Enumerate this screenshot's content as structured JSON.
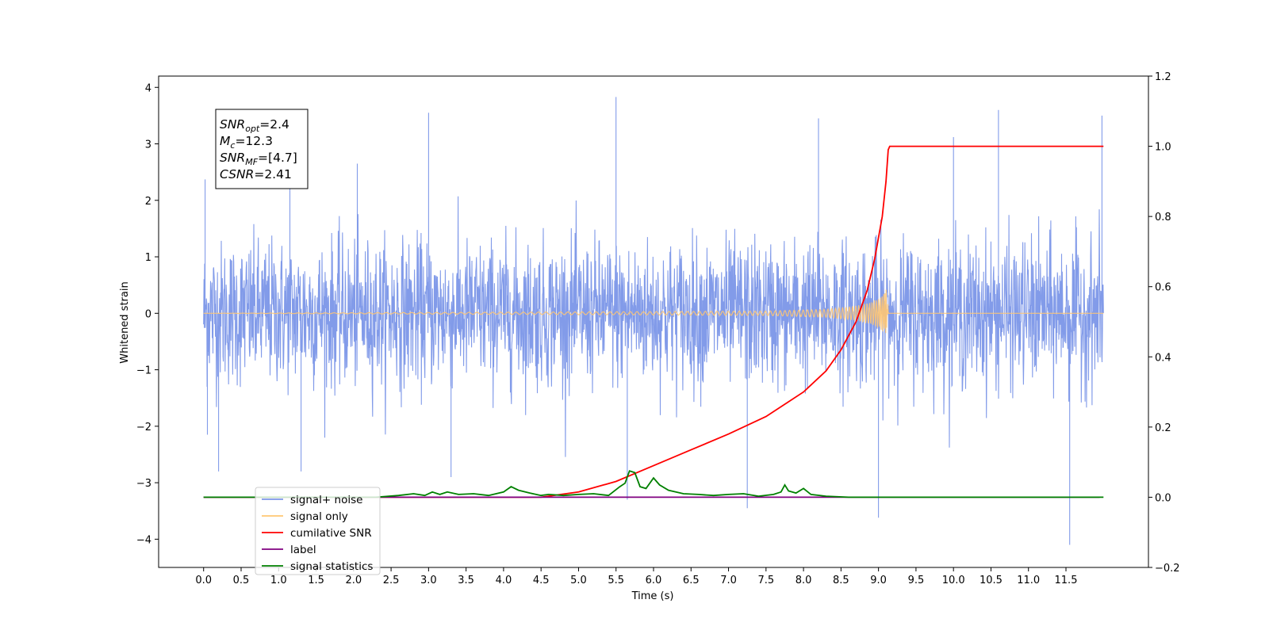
{
  "chart_data": {
    "type": "line",
    "xlabel": "Time (s)",
    "ylabel": "Whitened strain",
    "xlim": [
      -0.6,
      12.6
    ],
    "ylim_left": [
      -4.5,
      4.2
    ],
    "ylim_right": [
      -0.2,
      1.2
    ],
    "x_ticks": [
      0.0,
      0.5,
      1.0,
      1.5,
      2.0,
      2.5,
      3.0,
      3.5,
      4.0,
      4.5,
      5.0,
      5.5,
      6.0,
      6.5,
      7.0,
      7.5,
      8.0,
      8.5,
      9.0,
      9.5,
      10.0,
      10.5,
      11.0,
      11.5
    ],
    "x_tick_labels": [
      "0.0",
      "0.5",
      "1.0",
      "1.5",
      "2.0",
      "2.5",
      "3.0",
      "3.5",
      "4.0",
      "4.5",
      "5.0",
      "5.5",
      "6.0",
      "6.5",
      "7.0",
      "7.5",
      "8.0",
      "8.5",
      "9.0",
      "9.5",
      "10.0",
      "10.5",
      "11.0",
      "11.5"
    ],
    "y_left_ticks": [
      4,
      3,
      2,
      1,
      0,
      -1,
      -2,
      -3,
      -4
    ],
    "y_left_tick_labels": [
      "4",
      "3",
      "2",
      "1",
      "0",
      "−1",
      "−2",
      "−3",
      "−4"
    ],
    "y_right_ticks": [
      1.2,
      1.0,
      0.8,
      0.6,
      0.4,
      0.2,
      0.0,
      -0.2
    ],
    "y_right_tick_labels": [
      "1.2",
      "1.0",
      "0.8",
      "0.6",
      "0.4",
      "0.2",
      "0.0",
      "−0.2"
    ],
    "annotation": [
      {
        "sym": "SNR",
        "sub": "opt",
        "value": "=2.4"
      },
      {
        "sym": "M",
        "sub": "c",
        "value": "=12.3"
      },
      {
        "sym": "SNR",
        "sub": "MF",
        "value": "=[4.7]"
      },
      {
        "sym": "CSNR",
        "sub": "",
        "value": "=2.41"
      }
    ],
    "legend_position": "lower-left",
    "legend": [
      {
        "label": "signal+ noise",
        "color": "#7b96e8"
      },
      {
        "label": "signal only",
        "color": "#ffc773"
      },
      {
        "label": "cumilative SNR",
        "color": "#ff0000"
      },
      {
        "label": "label",
        "color": "#800080"
      },
      {
        "label": "signal statistics",
        "color": "#008000"
      }
    ],
    "series": [
      {
        "name": "signal+ noise",
        "axis": "left",
        "color": "#7b96e8",
        "x_range": [
          0.0,
          12.0
        ],
        "approx_amplitude": 1.8,
        "spikes": [
          [
            0.02,
            2.37
          ],
          [
            0.05,
            -2.15
          ],
          [
            0.2,
            -2.8
          ],
          [
            1.15,
            2.78
          ],
          [
            1.3,
            -2.8
          ],
          [
            2.05,
            2.65
          ],
          [
            3.0,
            3.55
          ],
          [
            3.3,
            -2.9
          ],
          [
            5.5,
            3.83
          ],
          [
            5.65,
            -3.3
          ],
          [
            7.25,
            -3.45
          ],
          [
            8.2,
            3.45
          ],
          [
            9.0,
            -3.62
          ],
          [
            10.0,
            3.12
          ],
          [
            10.6,
            3.6
          ],
          [
            11.55,
            -4.1
          ],
          [
            11.98,
            3.5
          ]
        ]
      },
      {
        "name": "signal only",
        "axis": "left",
        "color": "#ffc773",
        "x": [
          0.0,
          6.0,
          7.5,
          8.3,
          8.7,
          8.9,
          9.05,
          9.12,
          9.13,
          12.0
        ],
        "envelope": [
          0.0,
          0.03,
          0.04,
          0.07,
          0.13,
          0.2,
          0.3,
          0.48,
          0.0,
          0.0
        ]
      },
      {
        "name": "cumilative SNR",
        "axis": "right",
        "color": "#ff0000",
        "x": [
          0.0,
          4.5,
          5.0,
          5.5,
          6.0,
          6.5,
          7.0,
          7.5,
          8.0,
          8.3,
          8.5,
          8.7,
          8.85,
          8.95,
          9.05,
          9.1,
          9.13,
          9.15,
          12.0
        ],
        "y": [
          0.0,
          0.0,
          0.015,
          0.045,
          0.09,
          0.135,
          0.18,
          0.23,
          0.3,
          0.36,
          0.42,
          0.5,
          0.59,
          0.68,
          0.8,
          0.9,
          0.99,
          1.0,
          1.0
        ]
      },
      {
        "name": "label",
        "axis": "right",
        "color": "#800080",
        "x": [
          0.0,
          11.95
        ],
        "y": [
          0.0,
          0.0
        ]
      },
      {
        "name": "signal statistics",
        "axis": "right",
        "color": "#008000",
        "x": [
          0.0,
          2.3,
          2.6,
          2.8,
          2.95,
          3.05,
          3.15,
          3.25,
          3.4,
          3.6,
          3.8,
          4.0,
          4.1,
          4.2,
          4.35,
          4.5,
          4.6,
          4.8,
          5.0,
          5.2,
          5.4,
          5.55,
          5.62,
          5.68,
          5.75,
          5.82,
          5.9,
          6.0,
          6.08,
          6.2,
          6.4,
          6.6,
          6.8,
          7.0,
          7.2,
          7.4,
          7.6,
          7.7,
          7.75,
          7.8,
          7.9,
          8.0,
          8.1,
          8.3,
          8.6,
          9.0,
          12.0
        ],
        "y": [
          0.0,
          0.0,
          0.005,
          0.01,
          0.005,
          0.015,
          0.008,
          0.015,
          0.008,
          0.01,
          0.005,
          0.015,
          0.03,
          0.02,
          0.012,
          0.005,
          0.008,
          0.005,
          0.008,
          0.01,
          0.005,
          0.03,
          0.04,
          0.075,
          0.07,
          0.03,
          0.025,
          0.055,
          0.035,
          0.02,
          0.01,
          0.008,
          0.005,
          0.008,
          0.01,
          0.003,
          0.008,
          0.015,
          0.035,
          0.018,
          0.012,
          0.025,
          0.008,
          0.003,
          0.0,
          0.0,
          0.0
        ]
      }
    ]
  }
}
